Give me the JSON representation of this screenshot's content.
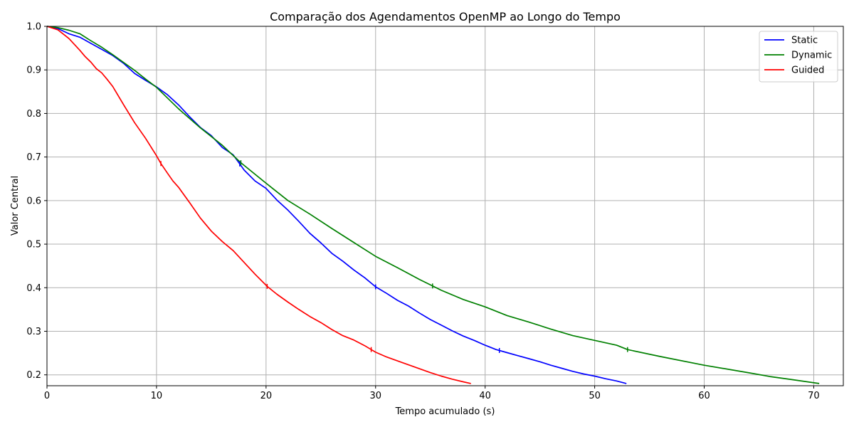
{
  "chart_data": {
    "type": "line",
    "title": "Comparação dos Agendamentos OpenMP ao Longo do Tempo",
    "xlabel": "Tempo acumulado (s)",
    "ylabel": "Valor Central",
    "xlim": [
      0,
      72.7
    ],
    "ylim": [
      0.175,
      1.0
    ],
    "xticks": [
      0,
      10,
      20,
      30,
      40,
      50,
      60,
      70
    ],
    "yticks": [
      0.2,
      0.3,
      0.4,
      0.5,
      0.6,
      0.7,
      0.8,
      0.9,
      1.0
    ],
    "xtick_labels": [
      "0",
      "10",
      "20",
      "30",
      "40",
      "50",
      "60",
      "70"
    ],
    "ytick_labels": [
      "0.2",
      "0.3",
      "0.4",
      "0.5",
      "0.6",
      "0.7",
      "0.8",
      "0.9",
      "1.0"
    ],
    "grid": true,
    "legend_position": "top-right",
    "series": [
      {
        "name": "Static",
        "color": "#0000ff",
        "x": [
          0,
          1,
          2,
          3,
          4,
          5,
          6,
          7,
          8,
          9,
          10,
          11,
          12,
          13,
          14,
          15,
          16,
          17,
          17.6,
          18,
          19,
          20,
          21,
          22,
          23,
          24,
          25,
          26,
          27,
          28,
          29,
          30,
          31,
          32,
          33,
          34,
          35,
          36,
          37,
          38,
          39,
          40,
          41,
          42,
          43,
          44,
          45,
          46,
          47,
          48,
          49,
          50,
          51,
          52,
          52.9
        ],
        "y": [
          1.0,
          0.995,
          0.983,
          0.975,
          0.961,
          0.947,
          0.933,
          0.915,
          0.892,
          0.876,
          0.861,
          0.843,
          0.82,
          0.793,
          0.768,
          0.749,
          0.722,
          0.705,
          0.684,
          0.67,
          0.645,
          0.628,
          0.601,
          0.578,
          0.552,
          0.525,
          0.503,
          0.479,
          0.461,
          0.441,
          0.423,
          0.402,
          0.387,
          0.371,
          0.358,
          0.342,
          0.327,
          0.314,
          0.301,
          0.289,
          0.279,
          0.268,
          0.258,
          0.251,
          0.244,
          0.237,
          0.23,
          0.222,
          0.215,
          0.208,
          0.202,
          0.197,
          0.191,
          0.186,
          0.18
        ]
      },
      {
        "name": "Dynamic",
        "color": "#008000",
        "x": [
          0,
          1,
          2,
          3,
          4,
          5,
          6,
          7,
          8,
          9,
          10,
          12,
          14,
          16,
          17.7,
          20,
          22,
          24,
          26,
          28,
          30,
          32,
          34,
          35.2,
          36,
          38,
          40,
          42,
          44,
          46,
          48,
          50,
          52,
          53,
          56,
          60,
          64,
          66,
          68,
          70.5
        ],
        "y": [
          1.0,
          0.997,
          0.991,
          0.983,
          0.967,
          0.952,
          0.935,
          0.917,
          0.899,
          0.879,
          0.86,
          0.811,
          0.767,
          0.727,
          0.687,
          0.64,
          0.6,
          0.569,
          0.536,
          0.504,
          0.472,
          0.446,
          0.419,
          0.404,
          0.394,
          0.373,
          0.356,
          0.336,
          0.321,
          0.305,
          0.29,
          0.279,
          0.268,
          0.258,
          0.242,
          0.222,
          0.205,
          0.196,
          0.189,
          0.18
        ]
      },
      {
        "name": "Guided",
        "color": "#ff0000",
        "x": [
          0,
          1,
          2,
          3,
          3.5,
          4,
          4.5,
          5,
          5.5,
          6,
          7,
          8,
          9,
          10,
          10.4,
          11,
          11.5,
          12,
          13,
          14,
          15,
          16,
          17,
          18,
          19,
          20.1,
          21,
          22,
          23,
          24,
          25,
          26,
          27,
          28,
          29,
          29.6,
          30,
          31,
          32,
          33,
          34,
          35,
          36,
          37,
          38,
          38.7
        ],
        "y": [
          1.0,
          0.992,
          0.972,
          0.945,
          0.93,
          0.918,
          0.903,
          0.893,
          0.878,
          0.862,
          0.82,
          0.779,
          0.743,
          0.703,
          0.685,
          0.663,
          0.645,
          0.631,
          0.596,
          0.56,
          0.53,
          0.506,
          0.485,
          0.458,
          0.431,
          0.403,
          0.385,
          0.367,
          0.35,
          0.334,
          0.32,
          0.304,
          0.29,
          0.28,
          0.267,
          0.258,
          0.252,
          0.241,
          0.232,
          0.223,
          0.214,
          0.205,
          0.197,
          0.19,
          0.184,
          0.18
        ]
      }
    ],
    "tick_markers": [
      {
        "series": "Static",
        "x": [
          17.6,
          30.0,
          41.3
        ]
      },
      {
        "series": "Dynamic",
        "x": [
          17.7,
          35.2,
          53.0
        ]
      },
      {
        "series": "Guided",
        "x": [
          10.4,
          20.1,
          29.6
        ]
      }
    ]
  }
}
